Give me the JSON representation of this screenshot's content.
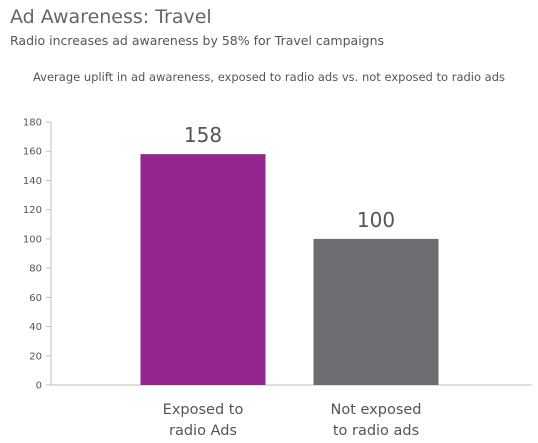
{
  "header": {
    "title": "Ad Awareness: Travel",
    "subtitle": "Radio increases ad awareness by 58% for Travel campaigns"
  },
  "chart_caption": "Average uplift in ad awareness, exposed to radio ads vs. not exposed to radio ads",
  "chart_data": {
    "type": "bar",
    "title": "Ad Awareness: Travel",
    "subtitle": "Radio increases ad awareness by 58% for Travel campaigns",
    "xlabel": "",
    "ylabel": "",
    "categories": [
      [
        "Exposed to",
        "radio Ads"
      ],
      [
        "Not exposed",
        "to radio ads"
      ]
    ],
    "values": [
      158,
      100
    ],
    "data_labels": [
      "158",
      "100"
    ],
    "colors": [
      "#93278f",
      "#6d6e71"
    ],
    "ylim": [
      0,
      180
    ],
    "yticks": [
      0,
      20,
      40,
      60,
      80,
      100,
      120,
      140,
      160,
      180
    ],
    "grid": false,
    "legend": "none"
  },
  "colors": {
    "axis": "#bfbfbf",
    "text": "#555555"
  }
}
